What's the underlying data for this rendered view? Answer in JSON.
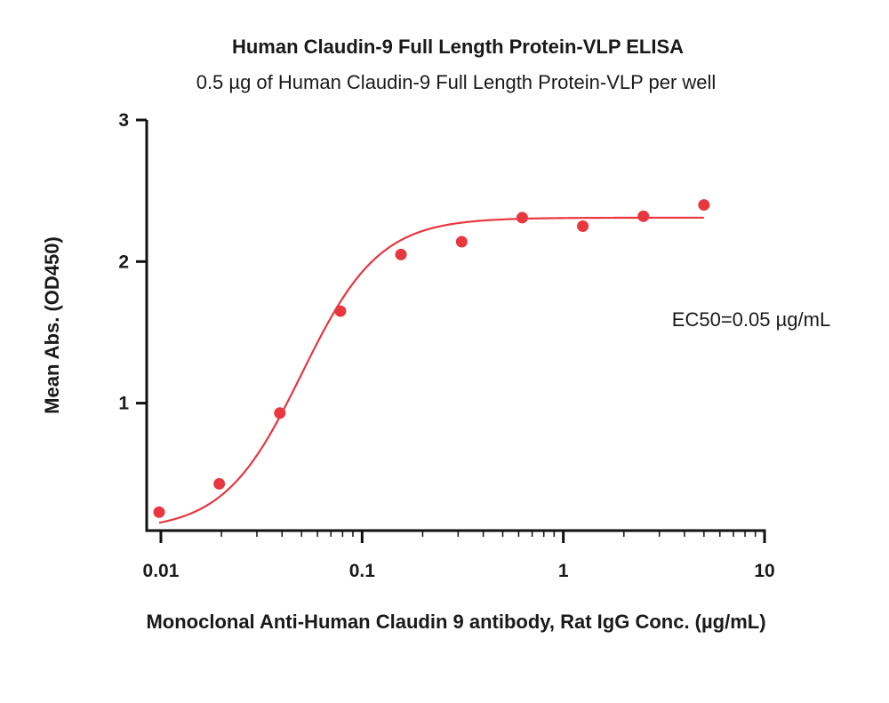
{
  "chart_data": {
    "type": "scatter",
    "title": "Human Claudin-9 Full Length Protein-VLP ELISA",
    "subtitle": "0.5 µg of Human Claudin-9 Full Length Protein-VLP per well",
    "xlabel": "Monoclonal Anti-Human Claudin 9 antibody, Rat IgG Conc. (µg/mL)",
    "ylabel": "Mean Abs. (OD450)",
    "x_scale": "log",
    "xlim": [
      0.0085,
      10
    ],
    "ylim": [
      0.1,
      3
    ],
    "x_ticks": [
      {
        "value": 0.01,
        "label": "0.01"
      },
      {
        "value": 0.1,
        "label": "0.1"
      },
      {
        "value": 1,
        "label": "1"
      },
      {
        "value": 10,
        "label": "10"
      }
    ],
    "y_ticks": [
      {
        "value": 1,
        "label": "1"
      },
      {
        "value": 2,
        "label": "2"
      },
      {
        "value": 3,
        "label": "3"
      }
    ],
    "series": [
      {
        "color": "#e8373f",
        "points": [
          {
            "x": 0.0098,
            "y": 0.23
          },
          {
            "x": 0.0195,
            "y": 0.43
          },
          {
            "x": 0.039,
            "y": 0.93
          },
          {
            "x": 0.078,
            "y": 1.65
          },
          {
            "x": 0.156,
            "y": 2.05
          },
          {
            "x": 0.3125,
            "y": 2.14
          },
          {
            "x": 0.625,
            "y": 2.31
          },
          {
            "x": 1.25,
            "y": 2.25
          },
          {
            "x": 2.5,
            "y": 2.32
          },
          {
            "x": 5,
            "y": 2.4
          }
        ],
        "fit": {
          "model": "4PL",
          "bottom": 0.1,
          "top": 2.31,
          "ec50": 0.05,
          "hill": 2.25,
          "x_range": [
            0.0098,
            5
          ]
        }
      }
    ],
    "annotation": "EC50=0.05 µg/mL",
    "grid": false,
    "legend": "none",
    "colors": {
      "series": "#e8373f",
      "axis": "#111111",
      "text": "#1a1a1a"
    }
  }
}
